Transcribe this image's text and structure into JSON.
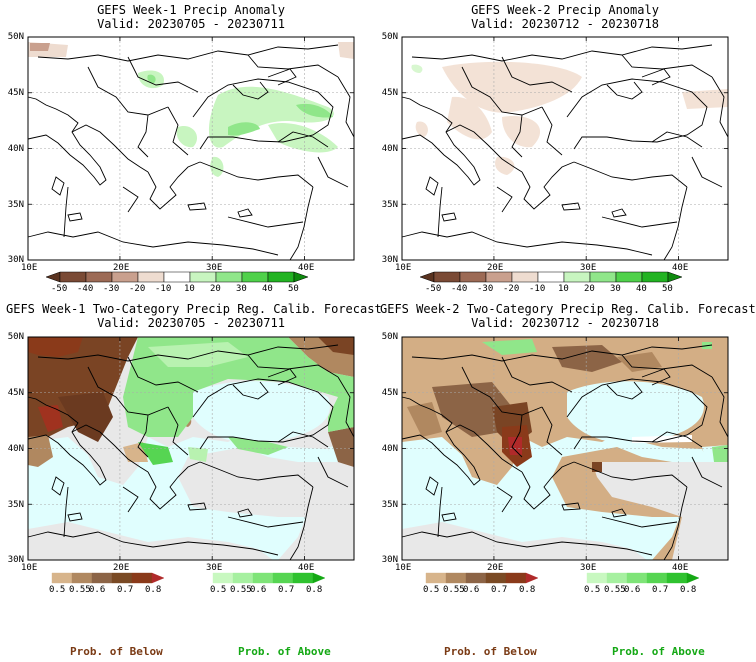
{
  "panels": {
    "p1": {
      "title": "GEFS Week-1 Precip Anomaly",
      "valid": "Valid: 20230705 - 20230711"
    },
    "p2": {
      "title": "GEFS Week-2 Precip Anomaly",
      "valid": "Valid: 20230712 - 20230718"
    },
    "p3": {
      "title": "GEFS Week-1 Two-Category Precip Reg. Calib. Forecast",
      "valid": "Valid: 20230705 - 20230711"
    },
    "p4": {
      "title": "GEFS Week-2 Two-Category Precip Reg. Calib. Forecast",
      "valid": "Valid: 20230712 - 20230718"
    }
  },
  "lat_labels": [
    "50N",
    "45N",
    "40N",
    "35N",
    "30N"
  ],
  "lon_labels": [
    "10E",
    "20E",
    "30E",
    "40E"
  ],
  "anomaly_scale": {
    "labels": [
      "-50",
      "-40",
      "-30",
      "-20",
      "-10",
      "10",
      "20",
      "30",
      "40",
      "50"
    ],
    "colors": [
      "#5a3320",
      "#7a4a35",
      "#9c6a55",
      "#c9a08e",
      "#eedcd0",
      "#ffffff",
      "#c8f5c0",
      "#90e68a",
      "#4fd14a",
      "#22b322",
      "#0e8a0e"
    ]
  },
  "below_scale": {
    "labels": [
      "0.5",
      "0.55",
      "0.6",
      "0.7",
      "0.8"
    ],
    "colors": [
      "#d7b48b",
      "#b08860",
      "#8c6446",
      "#7a4a24",
      "#8a3a1a",
      "#b02a2a"
    ]
  },
  "above_scale": {
    "labels": [
      "0.5",
      "0.55",
      "0.6",
      "0.7",
      "0.8"
    ],
    "colors": [
      "#c8f8c0",
      "#a6f0a0",
      "#7fe478",
      "#56d552",
      "#2fc22f",
      "#14a814"
    ]
  },
  "footer": {
    "below": "Prob. of Below",
    "above": "Prob. of Above"
  },
  "colors": {
    "sea": "#e0fefe",
    "neutral": "#e8e8e8",
    "below_dark": "#7a4424",
    "below_light": "#d3ae85",
    "above": "#90e68a",
    "grid": "#999999"
  }
}
